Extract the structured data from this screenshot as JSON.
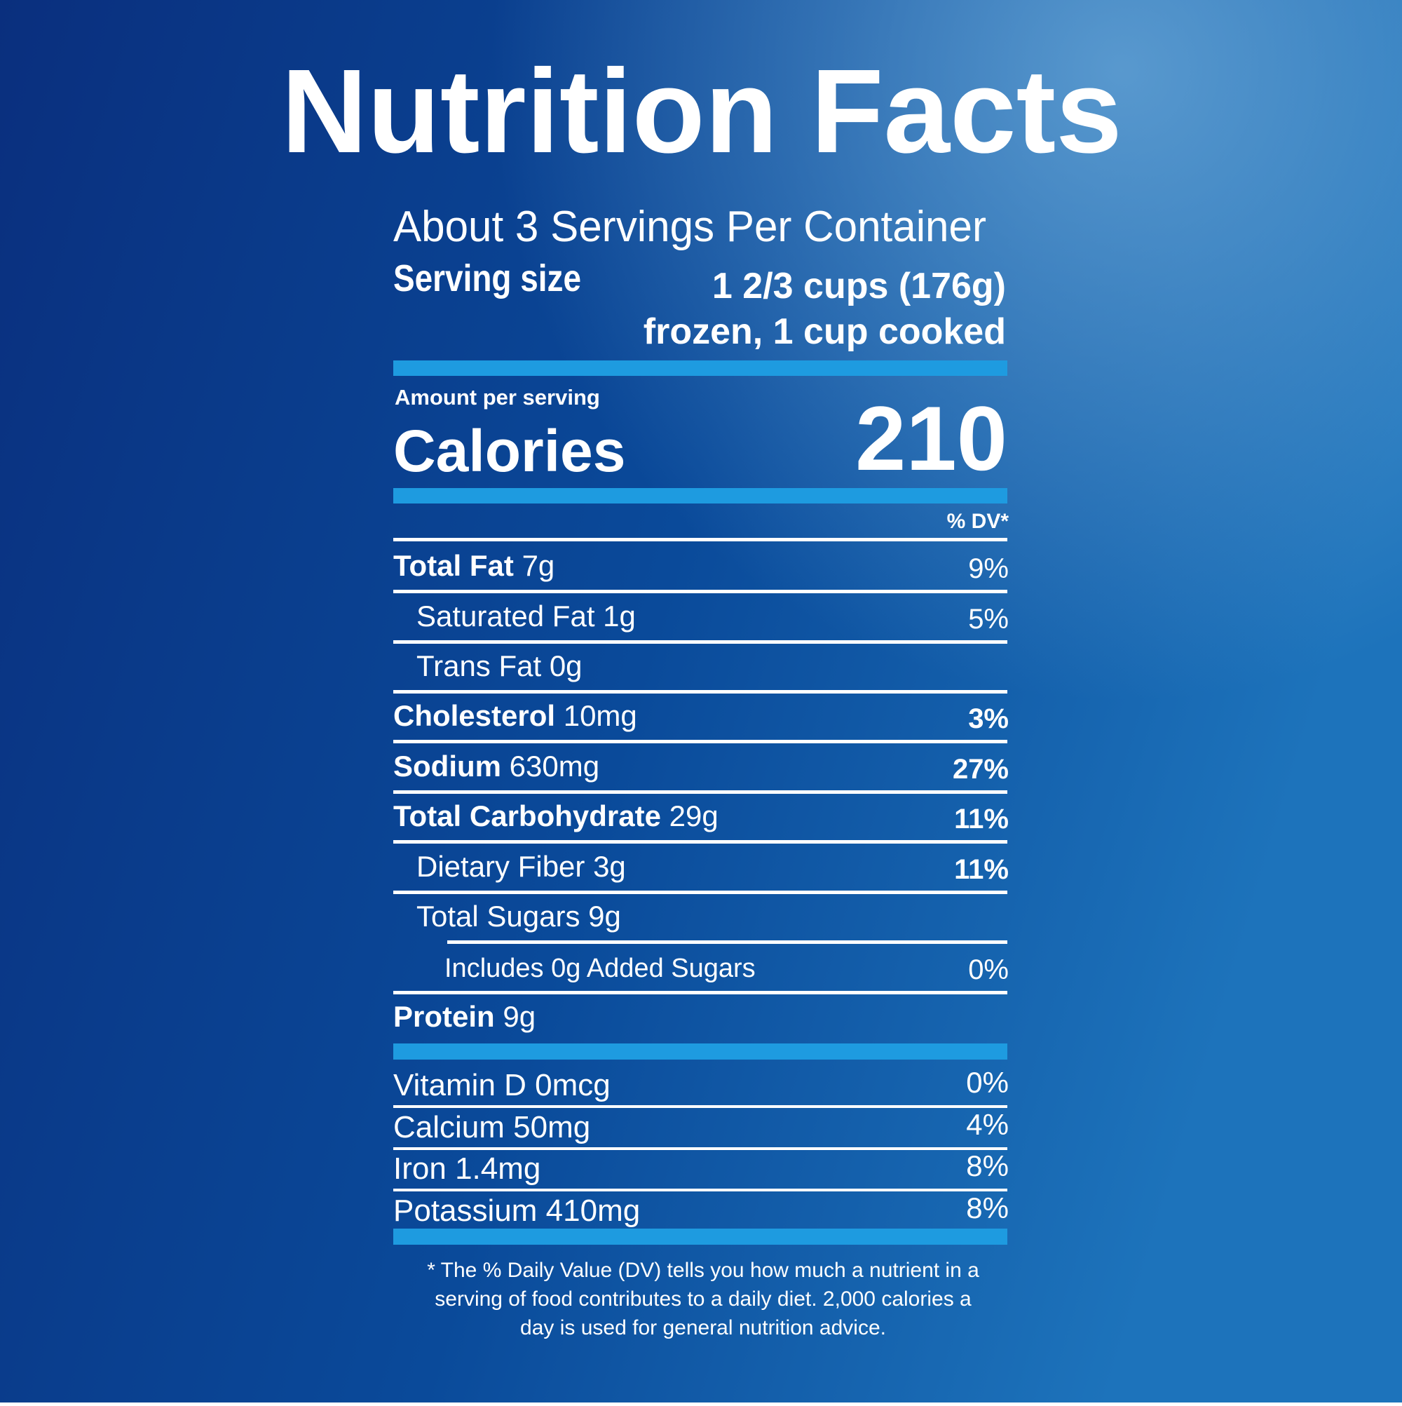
{
  "title": "Nutrition Facts",
  "servings": "About 3 Servings Per Container",
  "serving_size": {
    "label": "Serving size",
    "value_line1": "1 2/3 cups (176g)",
    "value_line2": "frozen, 1 cup cooked"
  },
  "calories": {
    "label_top": "Amount per serving",
    "label": "Calories",
    "value": "210"
  },
  "dv_header": "% DV*",
  "nutrients": [
    {
      "name": "Total Fat",
      "amount": "7g",
      "dv": "9%"
    },
    {
      "name": "Saturated Fat",
      "amount": "1g",
      "dv": "5%"
    },
    {
      "name": "Trans Fat",
      "amount": "0g"
    },
    {
      "name": "Cholesterol",
      "amount": "10mg",
      "dv": "3%"
    },
    {
      "name": "Sodium",
      "amount": "630mg",
      "dv": "27%"
    },
    {
      "name": "Total Carbohydrate",
      "amount": "29g",
      "dv": "11%"
    },
    {
      "name": "Dietary Fiber",
      "amount": "3g",
      "dv": "11%"
    },
    {
      "name": "Total Sugars",
      "amount": "9g"
    },
    {
      "name": "Includes 0g Added Sugars",
      "dv": "0%"
    },
    {
      "name": "Protein",
      "amount": "9g"
    }
  ],
  "vitamins": [
    {
      "name": "Vitamin D",
      "amount": "0mcg",
      "dv": "0%"
    },
    {
      "name": "Calcium",
      "amount": "50mg",
      "dv": "4%"
    },
    {
      "name": "Iron",
      "amount": "1.4mg",
      "dv": "8%"
    },
    {
      "name": "Potassium",
      "amount": "410mg",
      "dv": "8%"
    }
  ],
  "footnote": [
    "* The % Daily Value (DV) tells you how much a nutrient in a",
    "serving of food contributes to a daily diet. 2,000 calories a",
    "day is used for general nutrition advice."
  ]
}
